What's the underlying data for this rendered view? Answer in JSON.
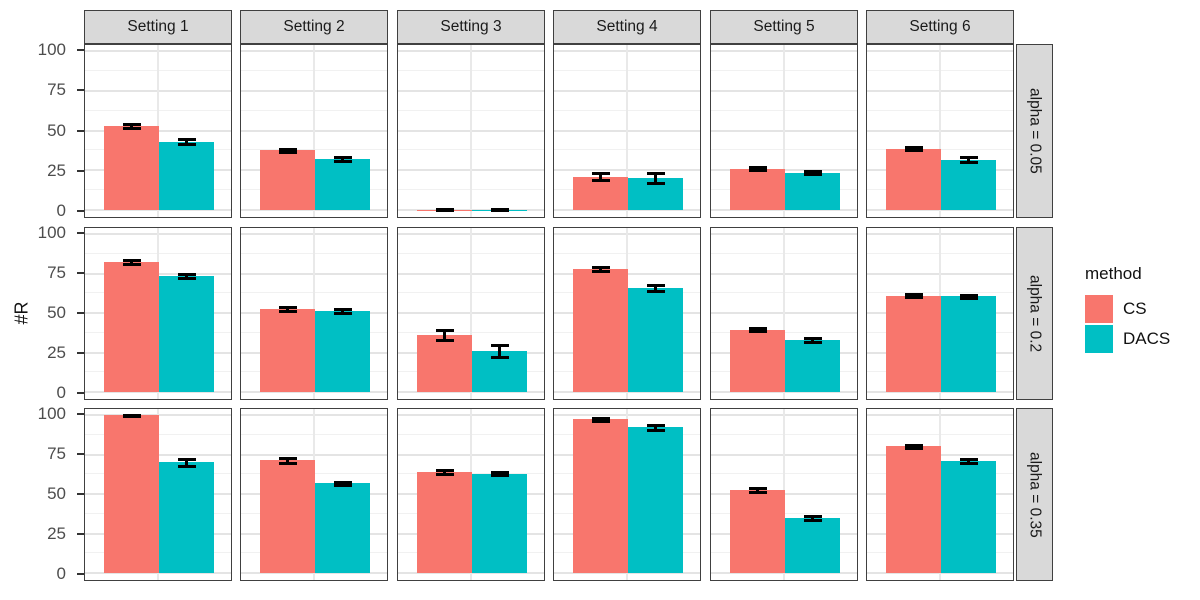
{
  "chart_data": {
    "type": "bar",
    "title": "",
    "ylabel": "#R",
    "yticks": [
      "0",
      "25",
      "50",
      "75",
      "100"
    ],
    "ylim": [
      0,
      100
    ],
    "grid": true,
    "facet_columns": [
      "Setting 1",
      "Setting 2",
      "Setting 3",
      "Setting 4",
      "Setting 5",
      "Setting 6"
    ],
    "facet_rows": [
      "alpha = 0.05",
      "alpha = 0.2",
      "alpha = 0.35"
    ],
    "legend": {
      "title": "method",
      "position": "right",
      "entries": [
        {
          "label": "CS",
          "color": "#F8766D"
        },
        {
          "label": "DACS",
          "color": "#00BFC4"
        }
      ]
    },
    "colors": {
      "CS": "#F8766D",
      "DACS": "#00BFC4",
      "strip_bg": "#D9D9D9",
      "panel_border": "#404040",
      "grid_major": "#E4E4E4",
      "grid_minor": "#F1F1F1",
      "errorbar": "#000000",
      "tick_label": "#4D4D4D"
    },
    "panels": [
      {
        "row": "alpha = 0.05",
        "values": [
          {
            "setting": "Setting 1",
            "CS": {
              "mean": 53,
              "err": 1.2
            },
            "DACS": {
              "mean": 43,
              "err": 1.5
            }
          },
          {
            "setting": "Setting 2",
            "CS": {
              "mean": 37.5,
              "err": 0.8
            },
            "DACS": {
              "mean": 32,
              "err": 1.2
            }
          },
          {
            "setting": "Setting 3",
            "CS": {
              "mean": 0.4,
              "err": 0.3
            },
            "DACS": {
              "mean": 0.4,
              "err": 0.3
            }
          },
          {
            "setting": "Setting 4",
            "CS": {
              "mean": 21,
              "err": 2.5
            },
            "DACS": {
              "mean": 20,
              "err": 3
            }
          },
          {
            "setting": "Setting 5",
            "CS": {
              "mean": 26,
              "err": 1
            },
            "DACS": {
              "mean": 23.5,
              "err": 1.2
            }
          },
          {
            "setting": "Setting 6",
            "CS": {
              "mean": 38.5,
              "err": 1
            },
            "DACS": {
              "mean": 31.5,
              "err": 1.5
            }
          }
        ]
      },
      {
        "row": "alpha = 0.2",
        "values": [
          {
            "setting": "Setting 1",
            "CS": {
              "mean": 82.5,
              "err": 1
            },
            "DACS": {
              "mean": 73.5,
              "err": 1.5
            }
          },
          {
            "setting": "Setting 2",
            "CS": {
              "mean": 52.5,
              "err": 1.2
            },
            "DACS": {
              "mean": 51.5,
              "err": 1.2
            }
          },
          {
            "setting": "Setting 3",
            "CS": {
              "mean": 36,
              "err": 3
            },
            "DACS": {
              "mean": 26,
              "err": 4
            }
          },
          {
            "setting": "Setting 4",
            "CS": {
              "mean": 78,
              "err": 1
            },
            "DACS": {
              "mean": 66,
              "err": 2
            }
          },
          {
            "setting": "Setting 5",
            "CS": {
              "mean": 39.5,
              "err": 1
            },
            "DACS": {
              "mean": 33,
              "err": 1.2
            }
          },
          {
            "setting": "Setting 6",
            "CS": {
              "mean": 61,
              "err": 1
            },
            "DACS": {
              "mean": 60.5,
              "err": 1
            }
          }
        ]
      },
      {
        "row": "alpha = 0.35",
        "values": [
          {
            "setting": "Setting 1",
            "CS": {
              "mean": 100,
              "err": 0.4
            },
            "DACS": {
              "mean": 70,
              "err": 2
            }
          },
          {
            "setting": "Setting 2",
            "CS": {
              "mean": 71.5,
              "err": 1.5
            },
            "DACS": {
              "mean": 57,
              "err": 1
            }
          },
          {
            "setting": "Setting 3",
            "CS": {
              "mean": 64,
              "err": 1.2
            },
            "DACS": {
              "mean": 63,
              "err": 1
            }
          },
          {
            "setting": "Setting 4",
            "CS": {
              "mean": 97.5,
              "err": 0.8
            },
            "DACS": {
              "mean": 92.5,
              "err": 1.5
            }
          },
          {
            "setting": "Setting 5",
            "CS": {
              "mean": 52.5,
              "err": 1.2
            },
            "DACS": {
              "mean": 35,
              "err": 1.2
            }
          },
          {
            "setting": "Setting 6",
            "CS": {
              "mean": 80.5,
              "err": 1
            },
            "DACS": {
              "mean": 71,
              "err": 1.5
            }
          }
        ]
      }
    ]
  }
}
